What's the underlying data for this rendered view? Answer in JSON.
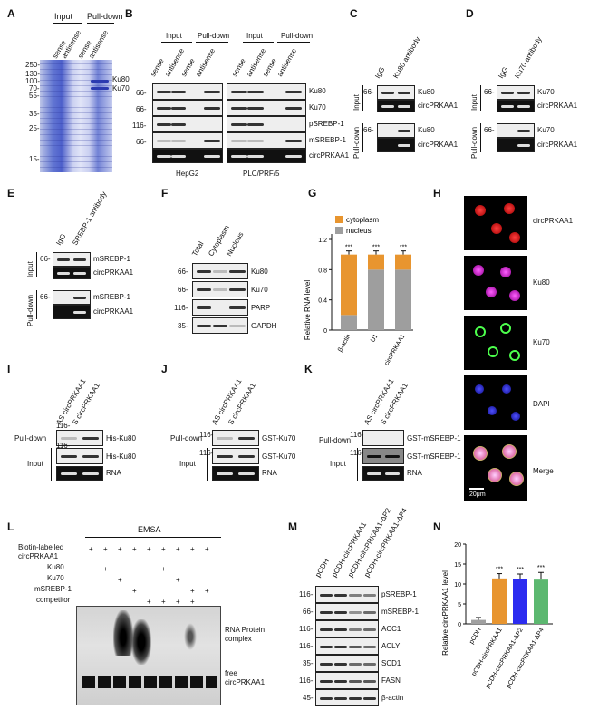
{
  "panels": {
    "A": {
      "letter": "A",
      "col_headers": [
        "Input",
        "Pull-down"
      ],
      "lanes": [
        "sense",
        "antisense",
        "sense",
        "antisense"
      ],
      "markers": [
        "250-",
        "130-",
        "100-",
        "70-",
        "55-",
        "35-",
        "25-",
        "15-"
      ],
      "bands": [
        "Ku80",
        "Ku70"
      ]
    },
    "B": {
      "letter": "B",
      "groups": [
        "Input",
        "Pull-down",
        "Input",
        "Pull-down"
      ],
      "lanes": [
        "sense",
        "antisense",
        "sense",
        "antisense",
        "sense",
        "antisense",
        "sense",
        "antisense"
      ],
      "rows": [
        "Ku80",
        "Ku70",
        "pSREBP-1",
        "mSREBP-1",
        "circPRKAA1"
      ],
      "markers": [
        "66-",
        "66-",
        "116-",
        "66-"
      ],
      "cell_lines": [
        "HepG2",
        "PLC/PRF/5"
      ]
    },
    "C": {
      "letter": "C",
      "lanes": [
        "IgG",
        "Ku80 antibody"
      ],
      "rows": [
        "Ku80",
        "circPRKAA1",
        "Ku80",
        "circPRKAA1"
      ],
      "sections": [
        "Input",
        "Pull-down"
      ],
      "markers": [
        "66-",
        "66-"
      ]
    },
    "D": {
      "letter": "D",
      "lanes": [
        "IgG",
        "Ku70 antibody"
      ],
      "rows": [
        "Ku70",
        "circPRKAA1",
        "Ku70",
        "circPRKAA1"
      ],
      "sections": [
        "Input",
        "Pull-down"
      ],
      "markers": [
        "66-",
        "66-"
      ]
    },
    "E": {
      "letter": "E",
      "lanes": [
        "IgG",
        "SREBP-1 antibody"
      ],
      "rows": [
        "mSREBP-1",
        "circPRKAA1",
        "mSREBP-1",
        "circPRKAA1"
      ],
      "sections": [
        "Input",
        "Pull-down"
      ],
      "markers": [
        "66-",
        "66-"
      ]
    },
    "F": {
      "letter": "F",
      "lanes": [
        "Total",
        "Cytoplasm",
        "Nucleus"
      ],
      "rows": [
        "Ku80",
        "Ku70",
        "PARP",
        "GAPDH"
      ],
      "markers": [
        "66-",
        "66-",
        "116-",
        "35-"
      ]
    },
    "G": {
      "letter": "G",
      "legend": [
        "cytoplasm",
        "nucleus"
      ],
      "ylabel": "Relative RNA level",
      "sig": "***"
    },
    "H": {
      "letter": "H",
      "rows": [
        "circPRKAA1",
        "Ku80",
        "Ku70",
        "DAPI",
        "Merge"
      ],
      "scale": "20μm"
    },
    "I": {
      "letter": "I",
      "lanes": [
        "AS circPRKAA1",
        "S circPRKAA1"
      ],
      "rows": [
        "His-Ku80",
        "His-Ku80",
        "RNA"
      ],
      "sections": [
        "Pull-down",
        "Input"
      ],
      "markers": [
        "116-",
        "116-"
      ]
    },
    "J": {
      "letter": "J",
      "lanes": [
        "AS circPRKAA1",
        "S circPRKAA1"
      ],
      "rows": [
        "GST-Ku70",
        "GST-Ku70",
        "RNA"
      ],
      "sections": [
        "Pull-down",
        "Input"
      ],
      "markers": [
        "116-",
        "116-"
      ]
    },
    "K": {
      "letter": "K",
      "lanes": [
        "AS circPRKAA1",
        "S circPRKAA1"
      ],
      "rows": [
        "GST-mSREBP-1",
        "GST-mSREBP-1",
        "RNA"
      ],
      "sections": [
        "Pull-down",
        "Input"
      ],
      "markers": [
        "116-",
        "116-"
      ]
    },
    "L": {
      "letter": "L",
      "title": "EMSA",
      "row_labels": [
        "Biotin-labelled",
        "circPRKAA1",
        "Ku80",
        "Ku70",
        "mSREBP-1",
        "competitor"
      ],
      "complex_label": "RNA Protein complex",
      "free_label": "free circPRKAA1"
    },
    "M": {
      "letter": "M",
      "lanes": [
        "pCDH",
        "pCDH-circPRKAA1",
        "pCDH-circPRKAA1-ΔP2",
        "pCDH-circPRKAA1-ΔP4"
      ],
      "rows": [
        "pSREBP-1",
        "mSREBP-1",
        "ACC1",
        "ACLY",
        "SCD1",
        "FASN",
        "β-actin"
      ],
      "markers": [
        "116-",
        "66-",
        "116-",
        "116-",
        "35-",
        "116-",
        "45-"
      ]
    },
    "N": {
      "letter": "N",
      "ylabel": "Relative circPRKAA1 level",
      "sig": "***"
    }
  },
  "chart_data": [
    {
      "type": "bar",
      "panel": "G",
      "categories": [
        "β-actin",
        "U1",
        "circPRKAA1"
      ],
      "series": [
        {
          "name": "nucleus",
          "values": [
            0.2,
            0.8,
            0.8
          ],
          "color": "#9e9e9e"
        },
        {
          "name": "cytoplasm",
          "values": [
            0.8,
            0.2,
            0.2
          ],
          "color": "#e8952f"
        }
      ],
      "stacked": true,
      "ylabel": "Relative RNA level",
      "ylim": [
        0,
        1.2
      ],
      "yticks": [
        "0",
        "0.4",
        "0.8",
        "1.2"
      ],
      "annotations": [
        "***",
        "***",
        "***"
      ],
      "legend": "top-left"
    },
    {
      "type": "bar",
      "panel": "N",
      "categories": [
        "pCDH",
        "pCDH-circPRKAA1",
        "pCDH-circPRKAA1-ΔP2",
        "pCDH-circPRKAA1-ΔP4"
      ],
      "values": [
        1.0,
        11.4,
        11.2,
        11.1
      ],
      "errors": [
        0.6,
        1.2,
        1.3,
        1.8
      ],
      "colors": [
        "#a0a0a0",
        "#e8952f",
        "#2c2cf0",
        "#5cb870"
      ],
      "ylabel": "Relative circPRKAA1 level",
      "ylim": [
        0,
        20
      ],
      "yticks": [
        "0",
        "5",
        "10",
        "15",
        "20"
      ],
      "annotations": [
        "",
        "***",
        "***",
        "***"
      ]
    }
  ]
}
